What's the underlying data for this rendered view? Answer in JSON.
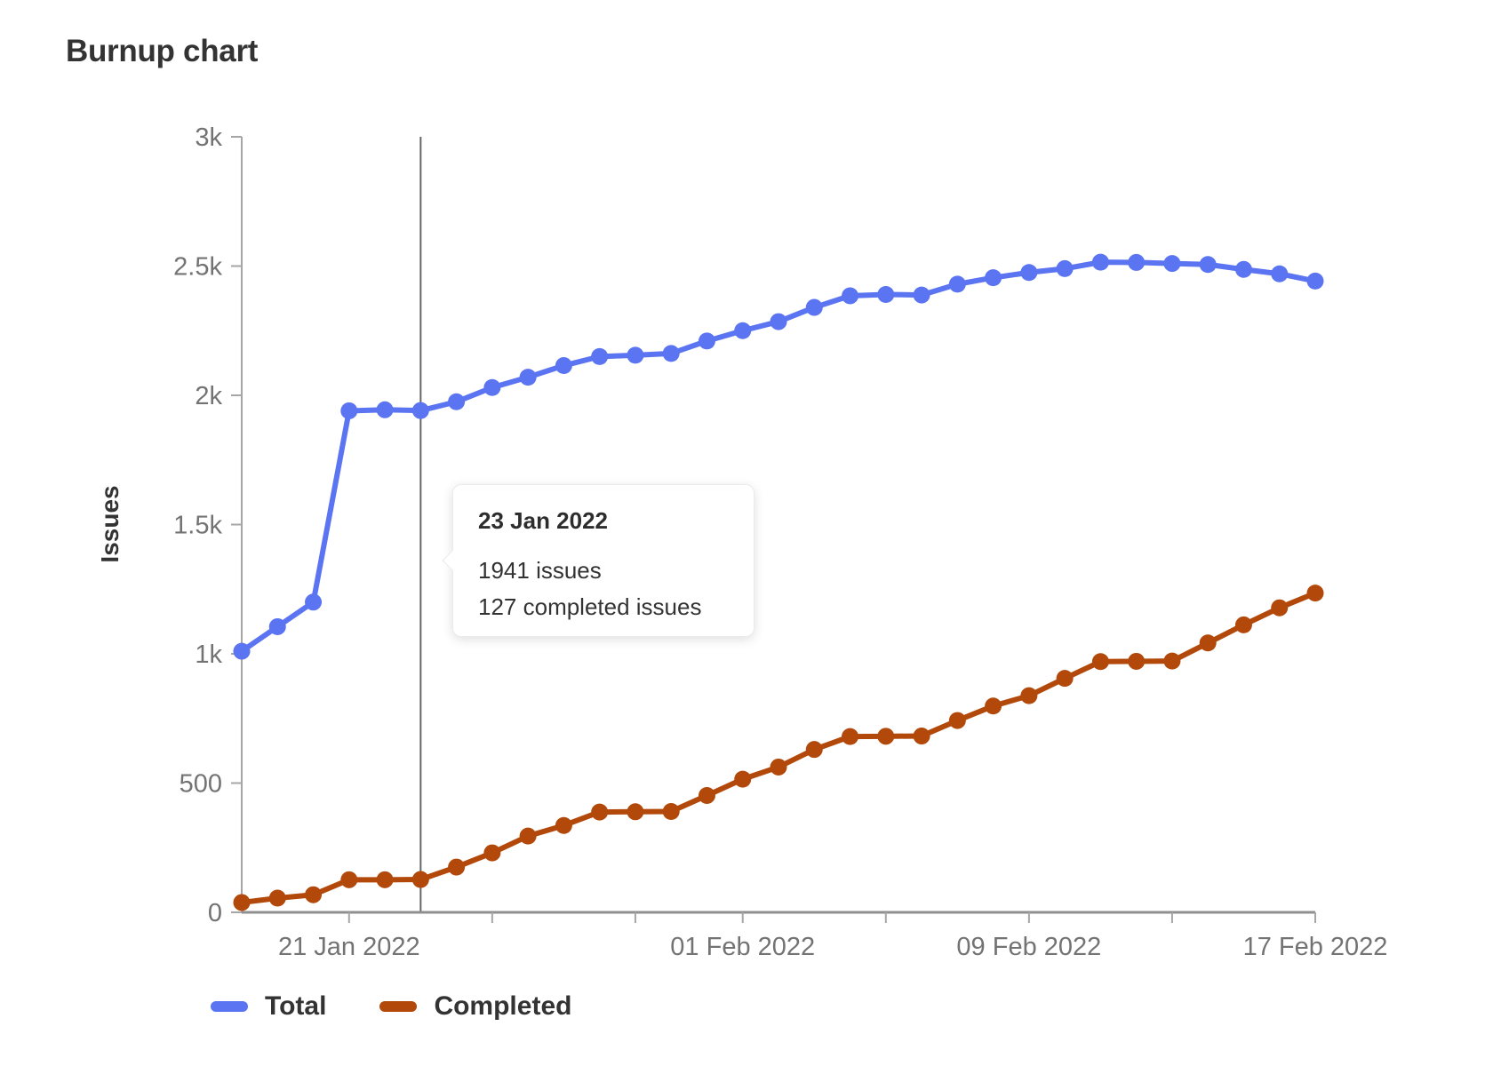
{
  "page": {
    "title": "Burnup chart"
  },
  "colors": {
    "total": "#5b74f1",
    "completed": "#b2490b",
    "axis": "#a6a6a6",
    "tick_label": "#737373",
    "marker_line": "#666666",
    "text_dark": "#333333"
  },
  "chart_data": {
    "type": "line",
    "title": "Burnup chart",
    "xlabel": "",
    "ylabel": "Issues",
    "ylim": [
      0,
      3000
    ],
    "grid": false,
    "legend_position": "bottom-left",
    "x_dates": [
      "2022-01-18",
      "2022-01-19",
      "2022-01-20",
      "2022-01-21",
      "2022-01-22",
      "2022-01-23",
      "2022-01-24",
      "2022-01-25",
      "2022-01-26",
      "2022-01-27",
      "2022-01-28",
      "2022-01-29",
      "2022-01-30",
      "2022-01-31",
      "2022-02-01",
      "2022-02-02",
      "2022-02-03",
      "2022-02-04",
      "2022-02-05",
      "2022-02-06",
      "2022-02-07",
      "2022-02-08",
      "2022-02-09",
      "2022-02-10",
      "2022-02-11",
      "2022-02-12",
      "2022-02-13",
      "2022-02-14",
      "2022-02-15",
      "2022-02-16",
      "2022-02-17"
    ],
    "series": [
      {
        "name": "Total",
        "color_key": "total",
        "values": [
          1010,
          1105,
          1200,
          1940,
          1944,
          1941,
          1975,
          2030,
          2070,
          2115,
          2150,
          2155,
          2162,
          2210,
          2250,
          2285,
          2340,
          2385,
          2390,
          2388,
          2430,
          2455,
          2475,
          2490,
          2515,
          2514,
          2510,
          2506,
          2487,
          2470,
          2442
        ]
      },
      {
        "name": "Completed",
        "color_key": "completed",
        "values": [
          38,
          55,
          68,
          126,
          126,
          127,
          175,
          230,
          295,
          336,
          388,
          389,
          390,
          452,
          515,
          562,
          630,
          680,
          681,
          682,
          742,
          798,
          838,
          905,
          970,
          971,
          972,
          1042,
          1112,
          1178,
          1235
        ]
      }
    ],
    "y_ticks": [
      {
        "value": 0,
        "label": "0"
      },
      {
        "value": 500,
        "label": "500"
      },
      {
        "value": 1000,
        "label": "1k"
      },
      {
        "value": 1500,
        "label": "1.5k"
      },
      {
        "value": 2000,
        "label": "2k"
      },
      {
        "value": 2500,
        "label": "2.5k"
      },
      {
        "value": 3000,
        "label": "3k"
      }
    ],
    "x_ticks": [
      {
        "index": 3,
        "label": "21 Jan 2022"
      },
      {
        "index": 7,
        "label": ""
      },
      {
        "index": 11,
        "label": ""
      },
      {
        "index": 14,
        "label": "01 Feb 2022"
      },
      {
        "index": 18,
        "label": ""
      },
      {
        "index": 22,
        "label": "09 Feb 2022"
      },
      {
        "index": 26,
        "label": ""
      },
      {
        "index": 30,
        "label": "17 Feb 2022"
      }
    ],
    "highlight": {
      "index": 5,
      "date": "23 Jan 2022",
      "total": 1941,
      "completed": 127
    }
  },
  "tooltip": {
    "date": "23 Jan 2022",
    "total_line": "1941 issues",
    "completed_line": "127 completed issues"
  },
  "legend": [
    {
      "label": "Total",
      "color_key": "total"
    },
    {
      "label": "Completed",
      "color_key": "completed"
    }
  ]
}
